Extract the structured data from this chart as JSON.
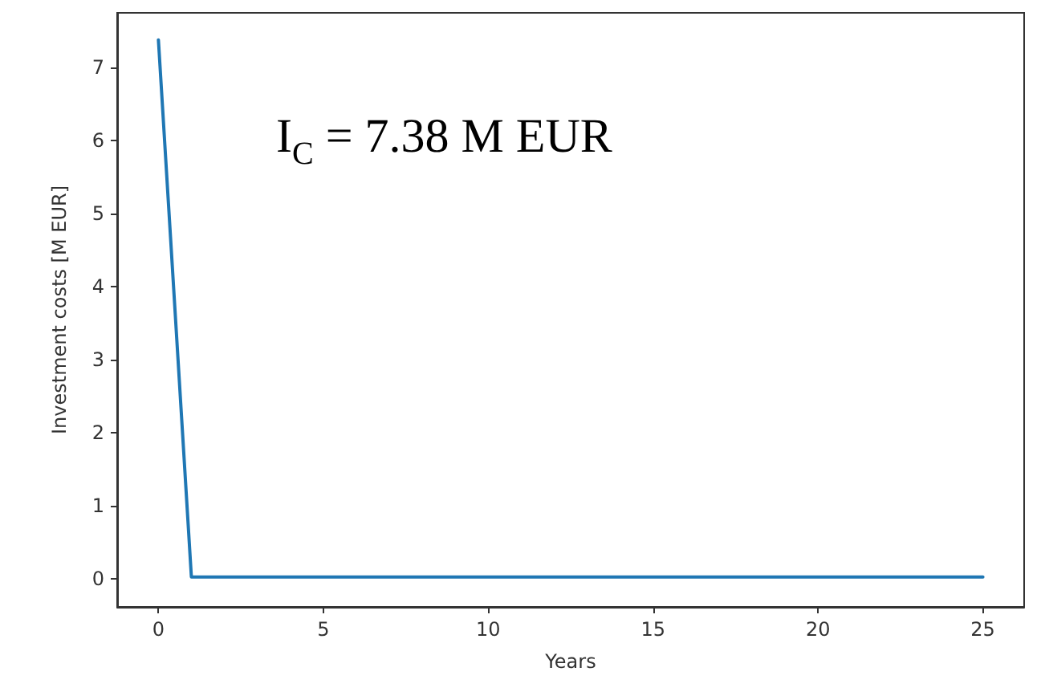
{
  "chart_data": {
    "type": "line",
    "xlabel": "Years",
    "ylabel": "Investment costs [M EUR]",
    "x": [
      0,
      1,
      25
    ],
    "series": [
      {
        "color": "#1f77b4",
        "values": [
          7.38,
          0.03,
          0.03
        ]
      }
    ],
    "xlim": [
      -1.25,
      26.25
    ],
    "xticks": [
      0,
      5,
      10,
      15,
      20,
      25
    ],
    "ylim": [
      -0.38,
      7.75
    ],
    "yticks": [
      0,
      1,
      2,
      3,
      4,
      5,
      6,
      7
    ],
    "marker": "none",
    "line_style": "solid",
    "annotations": [
      "I$_{C}$ = 7.38 M EUR"
    ]
  }
}
